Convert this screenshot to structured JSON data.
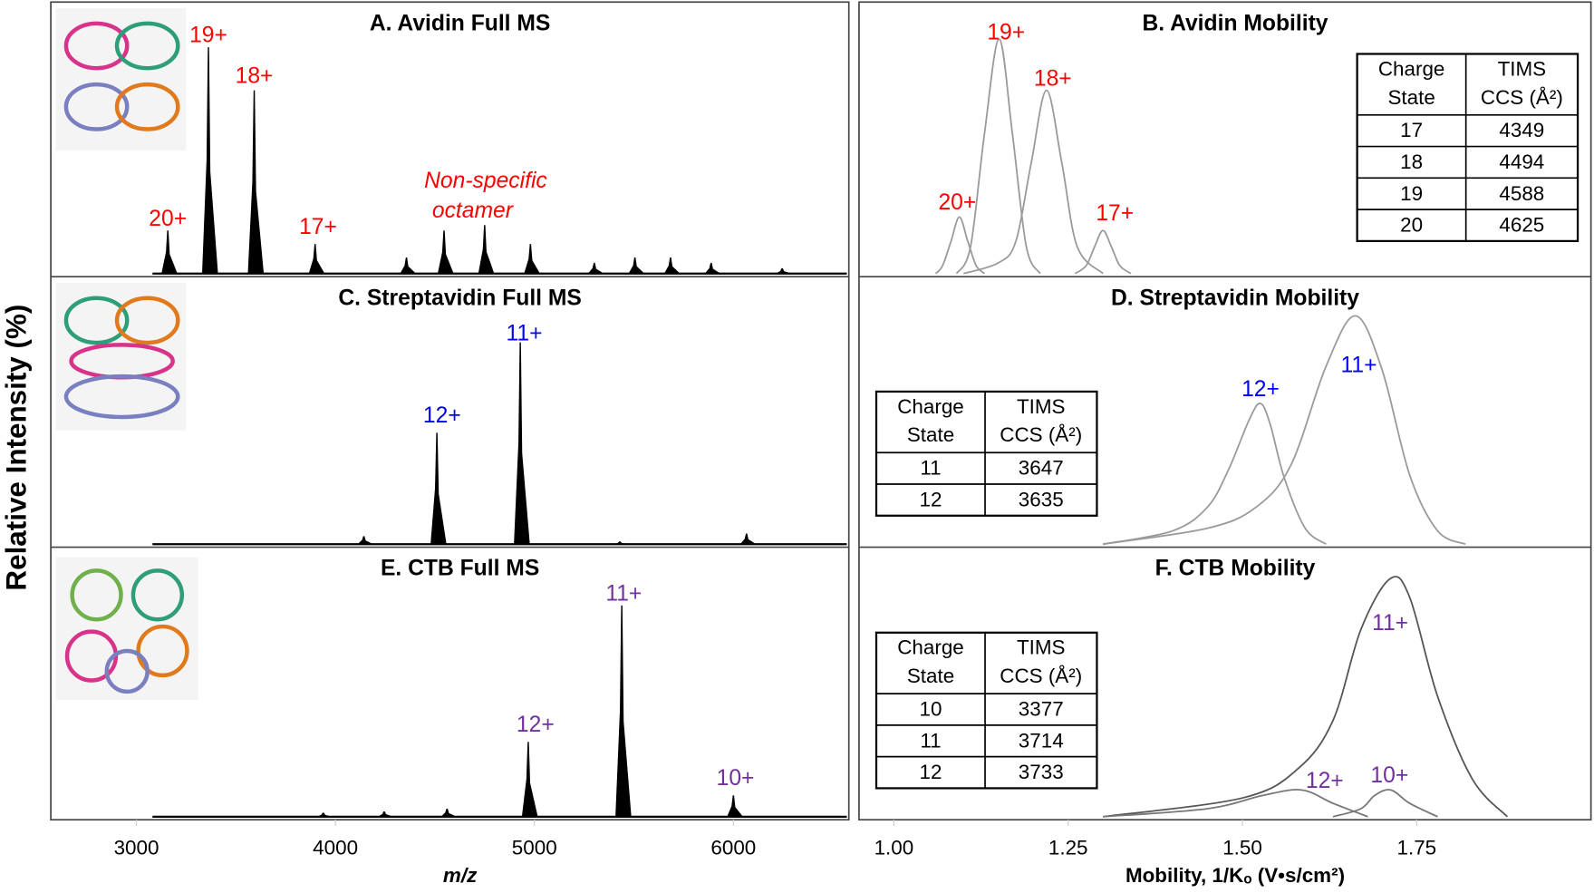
{
  "y_label": "Relative Intensity (%)",
  "chart_data": [
    {
      "type": "spectrum",
      "title": "A. Avidin Full MS",
      "xlim": [
        2570,
        6580
      ],
      "ylim": [
        0,
        100
      ],
      "color": "#000000",
      "annotation_color": "#ff0000",
      "x": [
        3158,
        3362,
        3592,
        3898,
        4357,
        4546,
        4750,
        4980,
        5301,
        5505,
        5684,
        5888,
        6245
      ],
      "values": [
        16,
        84,
        68,
        11,
        6,
        16,
        18,
        11,
        4,
        6,
        6,
        4,
        2
      ],
      "annotations": [
        {
          "text": "20+",
          "x": 3158,
          "y": 20
        },
        {
          "text": "19+",
          "x": 3362,
          "y": 88
        },
        {
          "text": "18+",
          "x": 3592,
          "y": 73
        },
        {
          "text": "17+",
          "x": 3913,
          "y": 17
        },
        {
          "text": "Non-specific",
          "x": 4755,
          "y": 34,
          "italic": true
        },
        {
          "text": "octamer",
          "x": 4689,
          "y": 23,
          "italic": true
        }
      ]
    },
    {
      "type": "line",
      "title": "B. Avidin Mobility",
      "xlim": [
        0.95,
        2.0
      ],
      "ylim": [
        0,
        100
      ],
      "annotation_color": "#ff0000",
      "table_position": "top-right",
      "series": [
        {
          "color": "#9a9a9a",
          "x": [
            1.06,
            1.07,
            1.082,
            1.094,
            1.106,
            1.118,
            1.13
          ],
          "values": [
            0,
            3,
            12,
            21,
            12,
            3,
            0
          ]
        },
        {
          "color": "#9a9a9a",
          "x": [
            1.09,
            1.11,
            1.13,
            1.151,
            1.17,
            1.19,
            1.21
          ],
          "values": [
            0,
            10,
            52,
            87,
            52,
            10,
            0
          ]
        },
        {
          "color": "#9a9a9a",
          "x": [
            1.1,
            1.15,
            1.175,
            1.197,
            1.219,
            1.241,
            1.263,
            1.3
          ],
          "values": [
            0,
            4,
            12,
            41,
            68,
            41,
            10,
            0
          ]
        },
        {
          "color": "#9a9a9a",
          "x": [
            1.26,
            1.276,
            1.288,
            1.3,
            1.312,
            1.324,
            1.34
          ],
          "values": [
            0,
            3,
            10,
            16,
            10,
            3,
            0
          ]
        }
      ],
      "annotations": [
        {
          "text": "20+",
          "x": 1.091,
          "y": 26
        },
        {
          "text": "19+",
          "x": 1.161,
          "y": 89
        },
        {
          "text": "18+",
          "x": 1.228,
          "y": 72
        },
        {
          "text": "17+",
          "x": 1.317,
          "y": 22
        }
      ],
      "table": {
        "header": [
          [
            "Charge",
            "State"
          ],
          [
            "TIMS",
            "CCS (Å²)"
          ]
        ],
        "rows": [
          [
            17,
            4349
          ],
          [
            18,
            4494
          ],
          [
            19,
            4588
          ],
          [
            20,
            4625
          ]
        ]
      }
    },
    {
      "type": "spectrum",
      "title": "C. Streptavidin Full MS",
      "xlim": [
        2570,
        6580
      ],
      "ylim": [
        0,
        100
      ],
      "color": "#000000",
      "annotation_color": "#0000ff",
      "x": [
        4143,
        4510,
        4929,
        5429,
        6066
      ],
      "values": [
        3,
        42,
        76,
        1,
        4
      ],
      "annotations": [
        {
          "text": "12+",
          "x": 4536,
          "y": 48
        },
        {
          "text": "11+",
          "x": 4949,
          "y": 79
        }
      ]
    },
    {
      "type": "line",
      "title": "D. Streptavidin Mobility",
      "xlim": [
        0.95,
        2.0
      ],
      "ylim": [
        0,
        100
      ],
      "annotation_color": "#0000ff",
      "table_position": "left",
      "series": [
        {
          "color": "#9a9a9a",
          "x": [
            1.3,
            1.4,
            1.45,
            1.48,
            1.51,
            1.526,
            1.54,
            1.56,
            1.59,
            1.62
          ],
          "values": [
            0,
            5,
            14,
            28,
            47,
            53,
            45,
            25,
            6,
            0
          ]
        },
        {
          "color": "#9a9a9a",
          "x": [
            1.3,
            1.45,
            1.52,
            1.57,
            1.62,
            1.662,
            1.7,
            1.74,
            1.78,
            1.82
          ],
          "values": [
            0,
            6,
            14,
            30,
            67,
            86,
            66,
            26,
            5,
            0
          ]
        }
      ],
      "annotations": [
        {
          "text": "12+",
          "x": 1.526,
          "y": 58
        },
        {
          "text": "11+",
          "x": 1.667,
          "y": 67
        }
      ],
      "table": {
        "header": [
          [
            "Charge",
            "State"
          ],
          [
            "TIMS",
            "CCS (Å²)"
          ]
        ],
        "rows": [
          [
            11,
            3647
          ],
          [
            12,
            3635
          ]
        ]
      }
    },
    {
      "type": "spectrum",
      "title": "E. CTB Full MS",
      "xlim": [
        2570,
        6580
      ],
      "ylim": [
        0,
        100
      ],
      "color": "#000000",
      "annotation_color": "#7030a0",
      "x": [
        3939,
        4245,
        4561,
        4969,
        5439,
        6000
      ],
      "values": [
        1.5,
        2,
        3,
        28,
        79,
        8
      ],
      "annotations": [
        {
          "text": "12+",
          "x": 5005,
          "y": 34
        },
        {
          "text": "11+",
          "x": 5449,
          "y": 83
        },
        {
          "text": "10+",
          "x": 6010,
          "y": 14
        }
      ],
      "xticks": [
        3000,
        4000,
        5000,
        6000
      ],
      "x_label": "m/z"
    },
    {
      "type": "line",
      "title": "F. CTB Mobility",
      "xlim": [
        0.95,
        2.0
      ],
      "ylim": [
        0,
        100
      ],
      "annotation_color": "#7030a0",
      "table_position": "left",
      "series": [
        {
          "color": "#555555",
          "x": [
            1.3,
            1.5,
            1.58,
            1.63,
            1.67,
            1.712,
            1.74,
            1.78,
            1.83,
            1.88
          ],
          "values": [
            0,
            7,
            18,
            36,
            70,
            89,
            82,
            45,
            14,
            0
          ]
        },
        {
          "color": "#777777",
          "x": [
            1.3,
            1.45,
            1.53,
            1.585,
            1.63,
            1.68
          ],
          "values": [
            0,
            3,
            8,
            10,
            5,
            0
          ]
        },
        {
          "color": "#777777",
          "x": [
            1.63,
            1.67,
            1.69,
            1.713,
            1.74,
            1.78
          ],
          "values": [
            0,
            3,
            8,
            10,
            5,
            0
          ]
        }
      ],
      "annotations": [
        {
          "text": "11+",
          "x": 1.712,
          "y": 72
        },
        {
          "text": "12+",
          "x": 1.618,
          "y": 13
        },
        {
          "text": "10+",
          "x": 1.711,
          "y": 15
        }
      ],
      "table": {
        "header": [
          [
            "Charge",
            "State"
          ],
          [
            "TIMS",
            "CCS (Å²)"
          ]
        ],
        "rows": [
          [
            10,
            3377
          ],
          [
            11,
            3714
          ],
          [
            12,
            3733
          ]
        ]
      },
      "xticks": [
        {
          "value": 1,
          "label": "1.00"
        },
        1.25,
        {
          "value": 1.5,
          "label": "1.50"
        },
        1.75
      ],
      "x_label": "Mobility, 1/Kₒ (V•s/cm²)"
    }
  ]
}
